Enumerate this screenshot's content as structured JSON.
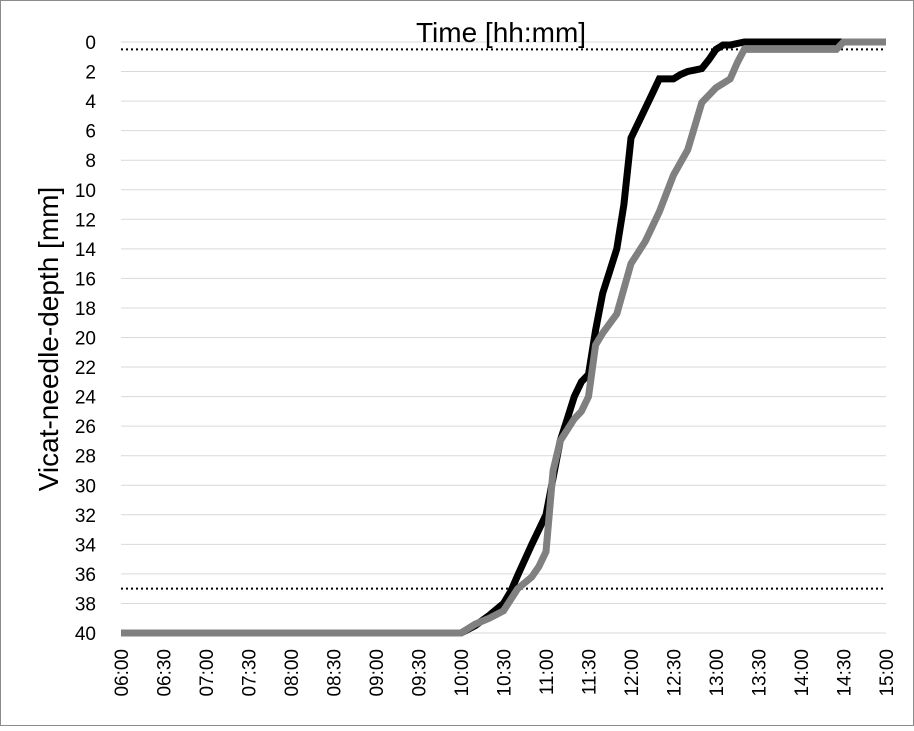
{
  "chart_data": {
    "type": "line",
    "xlabel": "Time [hh:mm]",
    "ylabel": "Vicat-needle-depth [mm]",
    "x_ticks": [
      "06:00",
      "06:30",
      "07:00",
      "07:30",
      "08:00",
      "08:30",
      "09:00",
      "09:30",
      "10:00",
      "10:30",
      "11:00",
      "11:30",
      "12:00",
      "12:30",
      "13:00",
      "13:30",
      "14:00",
      "14:30",
      "15:00"
    ],
    "y_ticks": [
      0,
      2,
      4,
      6,
      8,
      10,
      12,
      14,
      16,
      18,
      20,
      22,
      24,
      26,
      28,
      30,
      32,
      34,
      36,
      38,
      40
    ],
    "xlim_hours": [
      6,
      15
    ],
    "ylim": [
      40,
      0
    ],
    "y_inverted": true,
    "grid": "horizontal",
    "reference_lines": [
      {
        "y": 0.5,
        "style": "dotted",
        "color": "#000000"
      },
      {
        "y": 37,
        "style": "dotted",
        "color": "#000000"
      }
    ],
    "series": [
      {
        "color": "#000000",
        "x": [
          "06:00",
          "10:00",
          "10:10",
          "10:20",
          "10:30",
          "10:35",
          "10:40",
          "10:50",
          "10:55",
          "11:00",
          "11:05",
          "11:10",
          "11:15",
          "11:20",
          "11:25",
          "11:30",
          "11:35",
          "11:40",
          "11:45",
          "11:50",
          "11:55",
          "12:00",
          "12:05",
          "12:10",
          "12:15",
          "12:20",
          "12:25",
          "12:30",
          "12:35",
          "12:40",
          "12:45",
          "12:50",
          "12:55",
          "13:00",
          "13:05",
          "13:10",
          "13:20",
          "14:00",
          "14:30",
          "15:00"
        ],
        "y": [
          40,
          40,
          39.5,
          38.8,
          38,
          37.2,
          36.1,
          34,
          33,
          32,
          29.5,
          27,
          25.5,
          24,
          23,
          22.5,
          19.5,
          17,
          15.5,
          14,
          11,
          6.5,
          5.5,
          4.5,
          3.5,
          2.5,
          2.5,
          2.5,
          2.2,
          2,
          1.9,
          1.8,
          1.2,
          0.5,
          0.2,
          0.2,
          0,
          0,
          0,
          0
        ]
      },
      {
        "color": "#808080",
        "x": [
          "06:00",
          "10:00",
          "10:10",
          "10:20",
          "10:30",
          "10:40",
          "10:50",
          "10:55",
          "11:00",
          "11:05",
          "11:10",
          "11:20",
          "11:25",
          "11:30",
          "11:35",
          "11:40",
          "11:50",
          "12:00",
          "12:10",
          "12:20",
          "12:30",
          "12:40",
          "12:50",
          "12:55",
          "13:00",
          "13:05",
          "13:10",
          "13:15",
          "13:20",
          "13:25",
          "14:00",
          "14:25",
          "14:30",
          "15:00"
        ],
        "y": [
          40,
          40,
          39.4,
          39,
          38.5,
          37,
          36.2,
          35.5,
          34.5,
          29,
          27,
          25.5,
          25,
          24,
          20.5,
          19.7,
          18.4,
          15,
          13.5,
          11.5,
          9,
          7.3,
          4.1,
          3.6,
          3.1,
          2.8,
          2.5,
          1.4,
          0.5,
          0.5,
          0.5,
          0.5,
          0,
          0
        ]
      }
    ]
  }
}
